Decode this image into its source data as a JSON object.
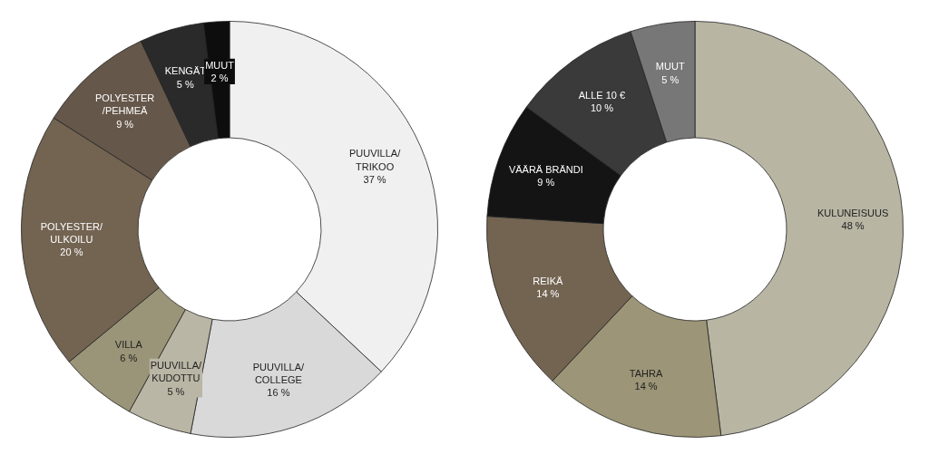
{
  "chart_data": [
    {
      "type": "donut",
      "categories": [
        "PUUVILLA/\nTRIKOO",
        "PUUVILLA/\nCOLLEGE",
        "PUUVILLA/\nKUDOTTU",
        "VILLA",
        "POLYESTER/\nULKOILU",
        "POLYESTER\n/PEHMEÄ",
        "KENGÄT",
        "MUUT"
      ],
      "values": [
        37,
        16,
        5,
        6,
        20,
        9,
        5,
        2
      ],
      "value_labels": [
        "37 %",
        "16 %",
        "5 %",
        "6 %",
        "20 %",
        "9 %",
        "5 %",
        "2 %"
      ],
      "colors": [
        "#f0f0f0",
        "#d9d9d9",
        "#bab6a5",
        "#9a9478",
        "#736452",
        "#65574a",
        "#2a2a2a",
        "#0d0d0d"
      ]
    },
    {
      "type": "donut",
      "categories": [
        "KULUNEISUUS",
        "TAHRA",
        "REIKÄ",
        "VÄÄRÄ BRÄNDI",
        "ALLE 10 €",
        "MUUT"
      ],
      "values": [
        48,
        14,
        14,
        9,
        10,
        5
      ],
      "value_labels": [
        "48 %",
        "14 %",
        "14 %",
        "9 %",
        "10 %",
        "5 %"
      ],
      "colors": [
        "#b8b5a3",
        "#9c9577",
        "#736452",
        "#141414",
        "#3a3a3a",
        "#777777"
      ]
    }
  ]
}
